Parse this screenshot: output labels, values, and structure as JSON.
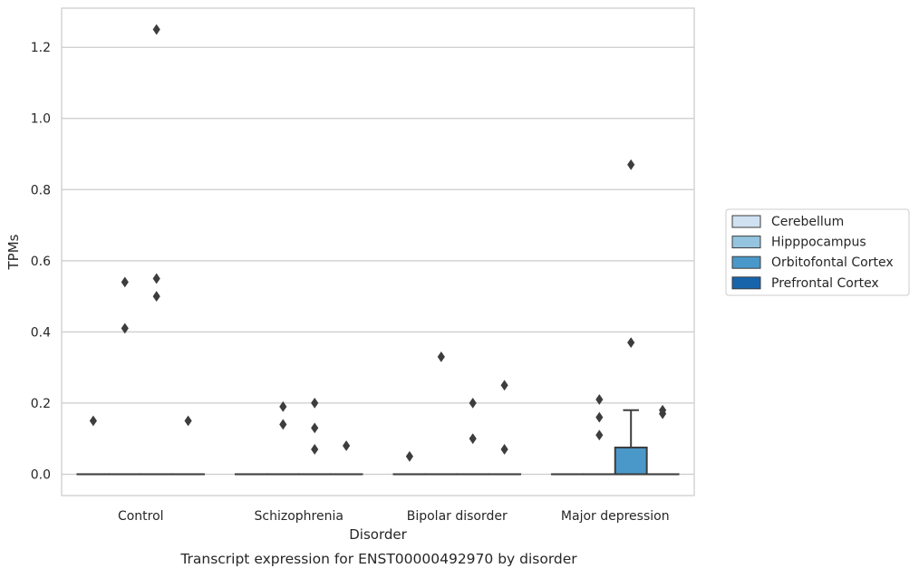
{
  "caption": "Transcript expression for ENST00000492970 by disorder",
  "chart_data": {
    "type": "box",
    "title": "",
    "xlabel": "Disorder",
    "ylabel": "TPMs",
    "categories": [
      "Control",
      "Schizophrenia",
      "Bipolar disorder",
      "Major depression"
    ],
    "ylim": [
      -0.06,
      1.31
    ],
    "yticks": [
      0.0,
      0.2,
      0.4,
      0.6,
      0.8,
      1.0,
      1.2
    ],
    "ytick_labels": [
      "0.0",
      "0.2",
      "0.4",
      "0.6",
      "0.8",
      "1.0",
      "1.2"
    ],
    "grid": "horizontal",
    "legend_position": "right",
    "series": [
      {
        "name": "Cerebellum",
        "color": "#d0e1f2"
      },
      {
        "name": "Hipppocampus",
        "color": "#94c4df"
      },
      {
        "name": "Orbitofontal Cortex",
        "color": "#4a98c9"
      },
      {
        "name": "Prefrontal Cortex",
        "color": "#1764ab"
      }
    ],
    "boxes": [
      {
        "category": "Control",
        "series": "Cerebellum",
        "q1": 0,
        "median": 0,
        "q3": 0,
        "whisker_low": 0,
        "whisker_high": 0,
        "outliers": [
          0.15
        ]
      },
      {
        "category": "Control",
        "series": "Hipppocampus",
        "q1": 0,
        "median": 0,
        "q3": 0,
        "whisker_low": 0,
        "whisker_high": 0,
        "outliers": [
          0.54,
          0.41
        ]
      },
      {
        "category": "Control",
        "series": "Orbitofontal Cortex",
        "q1": 0,
        "median": 0,
        "q3": 0,
        "whisker_low": 0,
        "whisker_high": 0,
        "outliers": [
          1.25,
          0.55,
          0.5
        ]
      },
      {
        "category": "Control",
        "series": "Prefrontal Cortex",
        "q1": 0,
        "median": 0,
        "q3": 0,
        "whisker_low": 0,
        "whisker_high": 0,
        "outliers": [
          0.15
        ]
      },
      {
        "category": "Schizophrenia",
        "series": "Cerebellum",
        "q1": 0,
        "median": 0,
        "q3": 0,
        "whisker_low": 0,
        "whisker_high": 0,
        "outliers": []
      },
      {
        "category": "Schizophrenia",
        "series": "Hipppocampus",
        "q1": 0,
        "median": 0,
        "q3": 0,
        "whisker_low": 0,
        "whisker_high": 0,
        "outliers": [
          0.19,
          0.14
        ]
      },
      {
        "category": "Schizophrenia",
        "series": "Orbitofontal Cortex",
        "q1": 0,
        "median": 0,
        "q3": 0,
        "whisker_low": 0,
        "whisker_high": 0,
        "outliers": [
          0.2,
          0.13,
          0.07
        ]
      },
      {
        "category": "Schizophrenia",
        "series": "Prefrontal Cortex",
        "q1": 0,
        "median": 0,
        "q3": 0,
        "whisker_low": 0,
        "whisker_high": 0,
        "outliers": [
          0.08
        ]
      },
      {
        "category": "Bipolar disorder",
        "series": "Cerebellum",
        "q1": 0,
        "median": 0,
        "q3": 0,
        "whisker_low": 0,
        "whisker_high": 0,
        "outliers": [
          0.05
        ]
      },
      {
        "category": "Bipolar disorder",
        "series": "Hipppocampus",
        "q1": 0,
        "median": 0,
        "q3": 0,
        "whisker_low": 0,
        "whisker_high": 0,
        "outliers": [
          0.33
        ]
      },
      {
        "category": "Bipolar disorder",
        "series": "Orbitofontal Cortex",
        "q1": 0,
        "median": 0,
        "q3": 0,
        "whisker_low": 0,
        "whisker_high": 0,
        "outliers": [
          0.2,
          0.1
        ]
      },
      {
        "category": "Bipolar disorder",
        "series": "Prefrontal Cortex",
        "q1": 0,
        "median": 0,
        "q3": 0,
        "whisker_low": 0,
        "whisker_high": 0,
        "outliers": [
          0.25,
          0.07
        ]
      },
      {
        "category": "Major depression",
        "series": "Cerebellum",
        "q1": 0,
        "median": 0,
        "q3": 0,
        "whisker_low": 0,
        "whisker_high": 0,
        "outliers": []
      },
      {
        "category": "Major depression",
        "series": "Hipppocampus",
        "q1": 0,
        "median": 0,
        "q3": 0,
        "whisker_low": 0,
        "whisker_high": 0,
        "outliers": [
          0.21,
          0.16,
          0.11
        ]
      },
      {
        "category": "Major depression",
        "series": "Orbitofontal Cortex",
        "q1": 0,
        "median": 0,
        "q3": 0.075,
        "whisker_low": 0,
        "whisker_high": 0.18,
        "outliers": [
          0.87,
          0.37
        ]
      },
      {
        "category": "Major depression",
        "series": "Prefrontal Cortex",
        "q1": 0,
        "median": 0,
        "q3": 0,
        "whisker_low": 0,
        "whisker_high": 0,
        "outliers": [
          0.18,
          0.17
        ]
      }
    ]
  }
}
